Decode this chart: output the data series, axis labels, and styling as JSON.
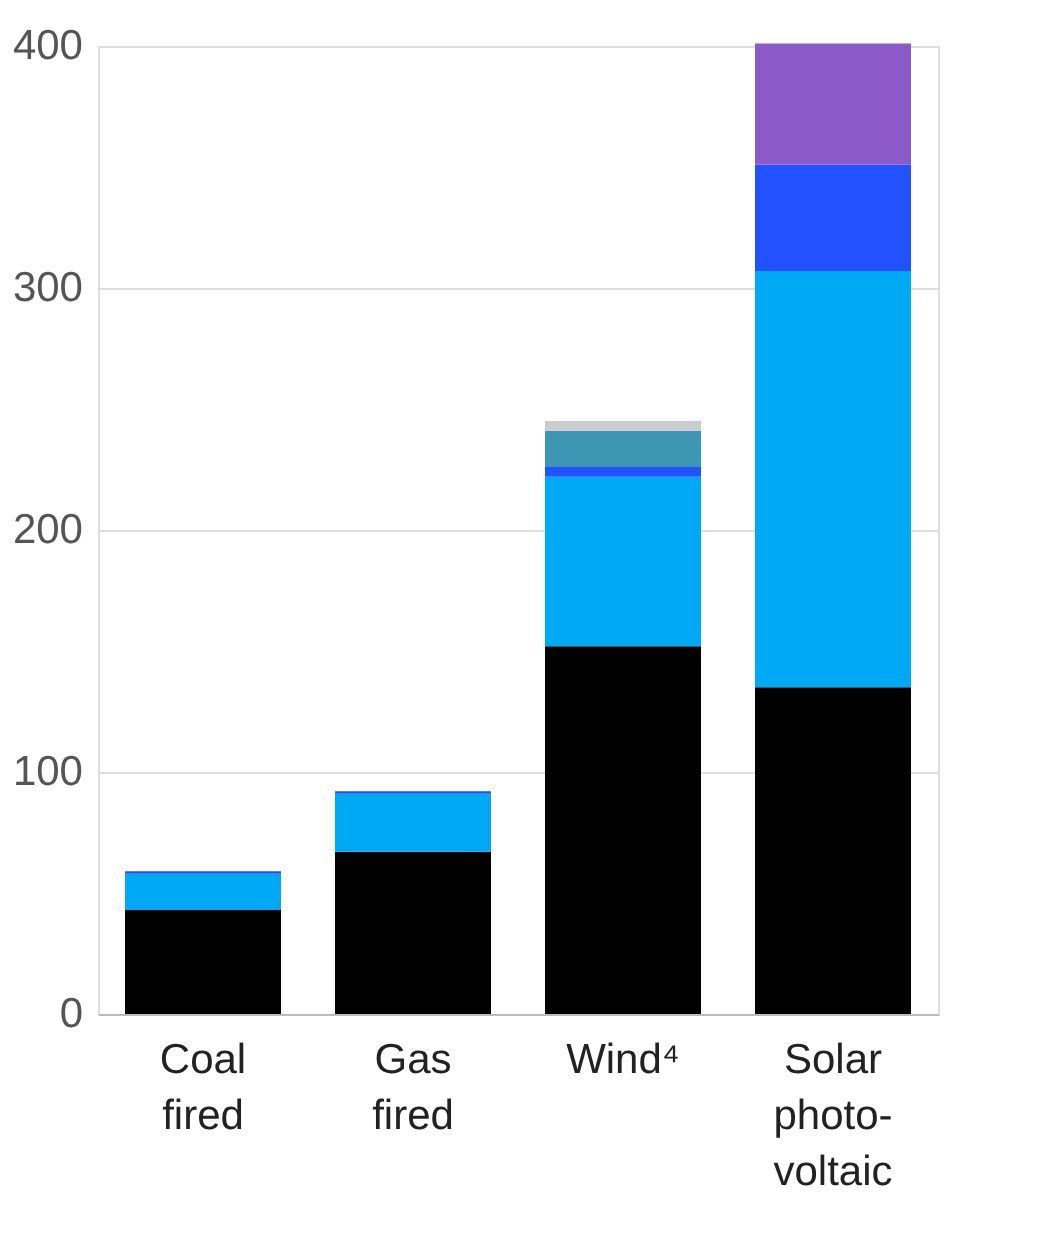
{
  "chart_data": {
    "type": "bar",
    "stacked": true,
    "categories": [
      "Coal fired",
      "Gas fired",
      "Wind⁴",
      "Solar photo-voltaic"
    ],
    "series": [
      {
        "color": "#000000",
        "values": [
          43,
          67,
          152,
          135
        ]
      },
      {
        "color": "#00a9f4",
        "values": [
          15,
          24,
          70,
          172
        ]
      },
      {
        "color": "#2251ff",
        "values": [
          1,
          1,
          4,
          44
        ]
      },
      {
        "color": "#3c96b4",
        "values": [
          0,
          0,
          15,
          0
        ]
      },
      {
        "color": "#cccccc",
        "values": [
          0,
          0,
          4,
          0
        ]
      },
      {
        "color": "#8c5ac8",
        "values": [
          0,
          0,
          0,
          50
        ]
      }
    ],
    "ylim": [
      0,
      400
    ],
    "yticks": [
      0,
      100,
      200,
      300,
      400
    ],
    "grid": "y"
  }
}
